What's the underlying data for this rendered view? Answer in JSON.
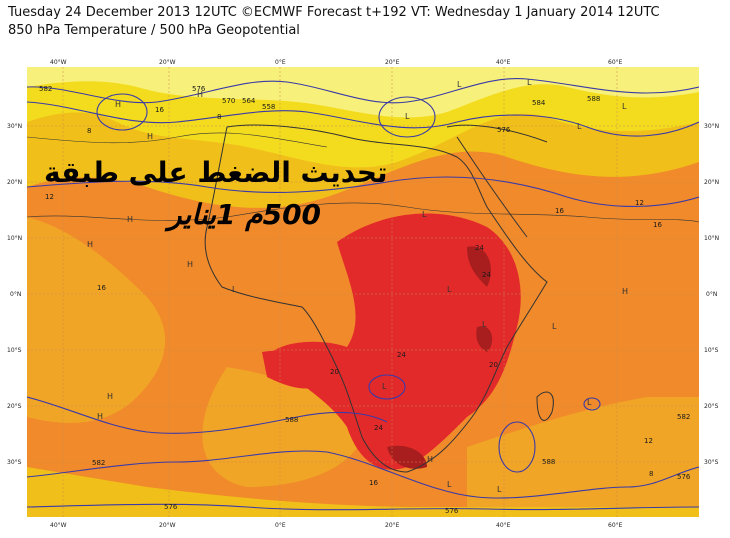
{
  "header": {
    "line1": "Tuesday 24 December 2013 12UTC ©ECMWF Forecast t+192 VT: Wednesday 1 January 2014 12UTC",
    "line2": "850 hPa Temperature / 500 hPa Geopotential"
  },
  "overlay": {
    "arabic_line1": "تحديث الضغط على طبقة",
    "arabic_line2": "500م 1يناير"
  },
  "axes": {
    "lon_labels": [
      "40°W",
      "20°W",
      "0°E",
      "20°E",
      "40°E",
      "60°E"
    ],
    "lat_labels": [
      "30°N",
      "20°N",
      "10°N",
      "0°N",
      "10°S",
      "20°S",
      "30°S"
    ]
  },
  "contour_labels": {
    "geopotential": [
      "582",
      "576",
      "570",
      "564",
      "558",
      "576",
      "584",
      "588",
      "588",
      "582",
      "576",
      "576",
      "588",
      "582",
      "576"
    ],
    "temperature": [
      "8",
      "12",
      "16",
      "16",
      "12",
      "24",
      "24",
      "24",
      "20",
      "20",
      "24",
      "16",
      "16",
      "12",
      "8",
      "8",
      "16"
    ]
  },
  "colors": {
    "yellow_light": "#f7f07a",
    "yellow": "#f3dc1e",
    "gold": "#f1bf19",
    "orange": "#f08a2a",
    "dark_orange": "#ec6d21",
    "red": "#e32a2a",
    "dark_red": "#a81e1e",
    "contour": "#3a3aa8",
    "coast": "#333333"
  }
}
